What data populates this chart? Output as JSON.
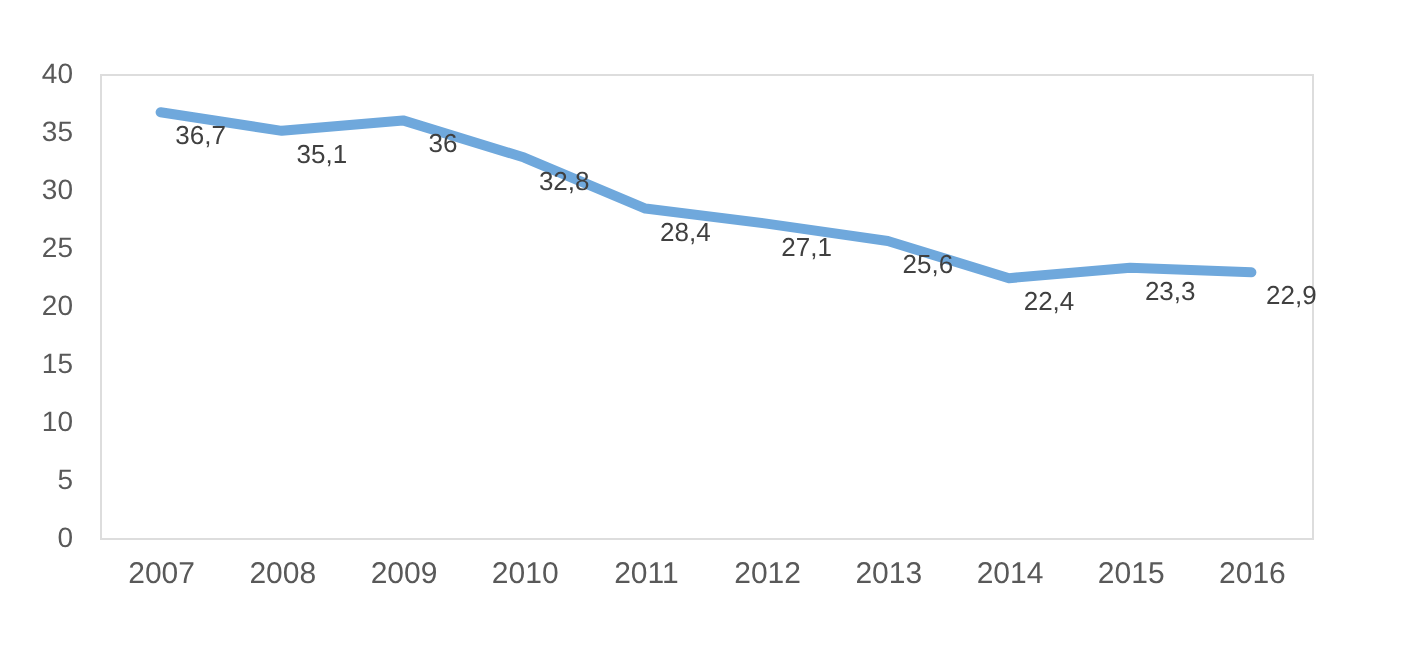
{
  "chart_data": {
    "type": "line",
    "categories": [
      "2007",
      "2008",
      "2009",
      "2010",
      "2011",
      "2012",
      "2013",
      "2014",
      "2015",
      "2016"
    ],
    "values": [
      36.7,
      35.1,
      36,
      32.8,
      28.4,
      27.1,
      25.6,
      22.4,
      23.3,
      22.9
    ],
    "value_labels": [
      "36,7",
      "35,1",
      "36",
      "32,8",
      "28,4",
      "27,1",
      "25,6",
      "22,4",
      "23,3",
      "22,9"
    ],
    "color": "#6fa8dc",
    "ylim": [
      0,
      40
    ],
    "yticks": [
      0,
      5,
      10,
      15,
      20,
      25,
      30,
      35,
      40
    ],
    "grid": false
  }
}
